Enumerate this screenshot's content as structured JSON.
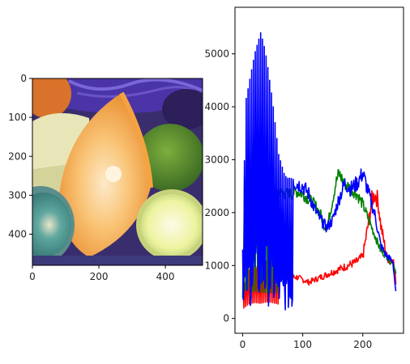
{
  "chart_data": [
    {
      "type": "image",
      "subject": "fruit photograph (orange wedge, lime, kiwi, banana, purple cabbage) rendered with swapped colour channels",
      "x_ticks": [
        "0",
        "200",
        "400"
      ],
      "y_ticks": [
        "0",
        "100",
        "200",
        "300",
        "400"
      ],
      "x_tick_values": [
        0,
        200,
        400
      ],
      "y_tick_values": [
        0,
        100,
        200,
        300,
        400
      ],
      "xlim": [
        0,
        512
      ],
      "ylim": [
        480,
        0
      ]
    },
    {
      "type": "line",
      "x_ticks": [
        "0",
        "100",
        "200"
      ],
      "y_ticks": [
        "0",
        "1000",
        "2000",
        "3000",
        "4000",
        "5000"
      ],
      "x_tick_values": [
        0,
        100,
        200
      ],
      "y_tick_values": [
        0,
        1000,
        2000,
        3000,
        4000,
        5000
      ],
      "xlim": [
        -12.75,
        267.75
      ],
      "ylim": [
        -280,
        5880
      ],
      "grid": false,
      "series": [
        {
          "color": "#ff0000",
          "x": [
            0,
            10,
            20,
            30,
            40,
            50,
            60,
            70,
            80,
            90,
            100,
            110,
            120,
            130,
            140,
            150,
            160,
            170,
            180,
            190,
            200,
            210,
            215,
            220,
            225,
            230,
            235,
            240,
            245,
            250,
            255
          ],
          "y": [
            600,
            900,
            1000,
            950,
            1050,
            1000,
            900,
            850,
            800,
            800,
            750,
            700,
            750,
            800,
            850,
            900,
            950,
            1000,
            1050,
            1100,
            1200,
            1900,
            2300,
            2400,
            2300,
            1800,
            1500,
            1200,
            1100,
            1200,
            700
          ]
        },
        {
          "color": "#008000",
          "x": [
            0,
            1,
            2,
            3,
            5,
            8,
            10,
            15,
            20,
            30,
            40,
            50,
            60,
            70,
            80,
            90,
            100,
            110,
            120,
            130,
            135,
            140,
            145,
            150,
            155,
            160,
            165,
            170,
            180,
            190,
            200,
            210,
            220,
            230,
            240,
            245,
            250,
            255
          ],
          "y": [
            400,
            4500,
            1500,
            2800,
            2600,
            2800,
            2800,
            2500,
            2600,
            2500,
            2450,
            2450,
            2450,
            2400,
            2400,
            2450,
            2400,
            2300,
            2200,
            2000,
            1800,
            1750,
            2000,
            2300,
            2600,
            2800,
            2700,
            2600,
            2500,
            2400,
            2200,
            1900,
            1600,
            1300,
            1200,
            1100,
            1100,
            900
          ]
        },
        {
          "color": "#0000ff",
          "x": [
            0,
            5,
            10,
            15,
            20,
            25,
            30,
            35,
            40,
            45,
            50,
            55,
            60,
            65,
            70,
            75,
            80,
            90,
            100,
            110,
            120,
            130,
            140,
            150,
            160,
            170,
            180,
            190,
            200,
            210,
            220,
            230,
            240,
            250,
            255
          ],
          "y": [
            1300,
            4100,
            4400,
            4700,
            5000,
            5200,
            5400,
            5200,
            4900,
            4500,
            4100,
            3600,
            3100,
            2900,
            2700,
            2650,
            2650,
            2600,
            2550,
            2400,
            2100,
            1900,
            1750,
            1900,
            2300,
            2600,
            2500,
            2600,
            2800,
            2400,
            2000,
            1400,
            1200,
            1100,
            500
          ]
        }
      ]
    }
  ]
}
